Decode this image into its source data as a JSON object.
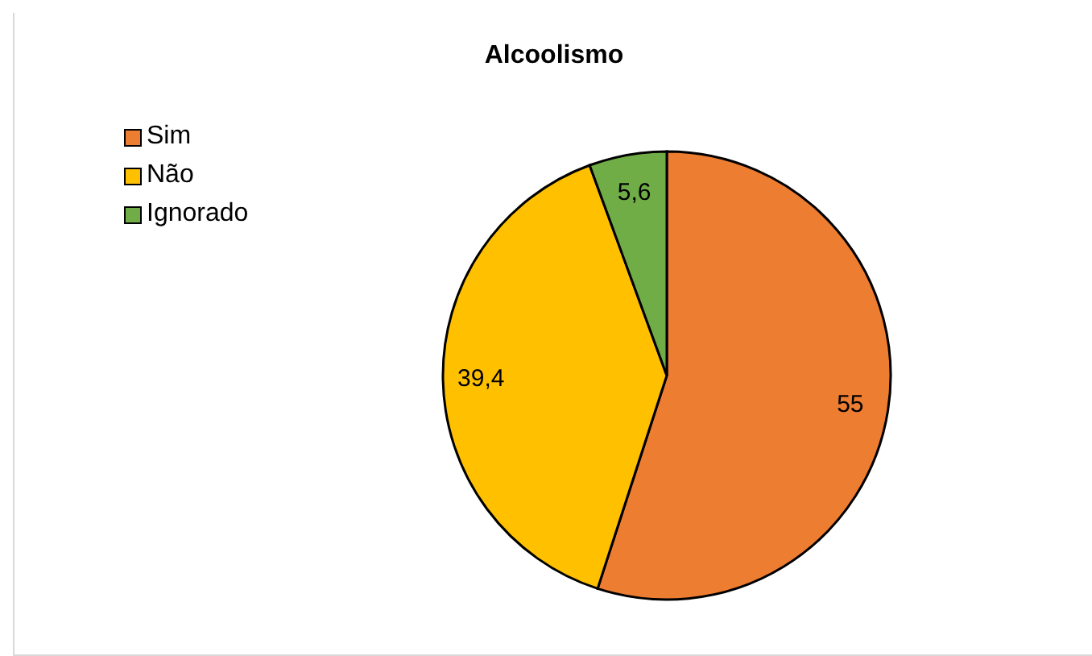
{
  "chart_data": {
    "type": "pie",
    "title": "Alcoolismo",
    "categories": [
      "Sim",
      "Não",
      "Ignorado"
    ],
    "values": [
      55,
      39.4,
      5.6
    ],
    "colors": [
      "#ed7d31",
      "#ffc000",
      "#70ad47"
    ],
    "value_labels": [
      "55",
      "39,4",
      "5,6"
    ],
    "legend": "top left"
  }
}
